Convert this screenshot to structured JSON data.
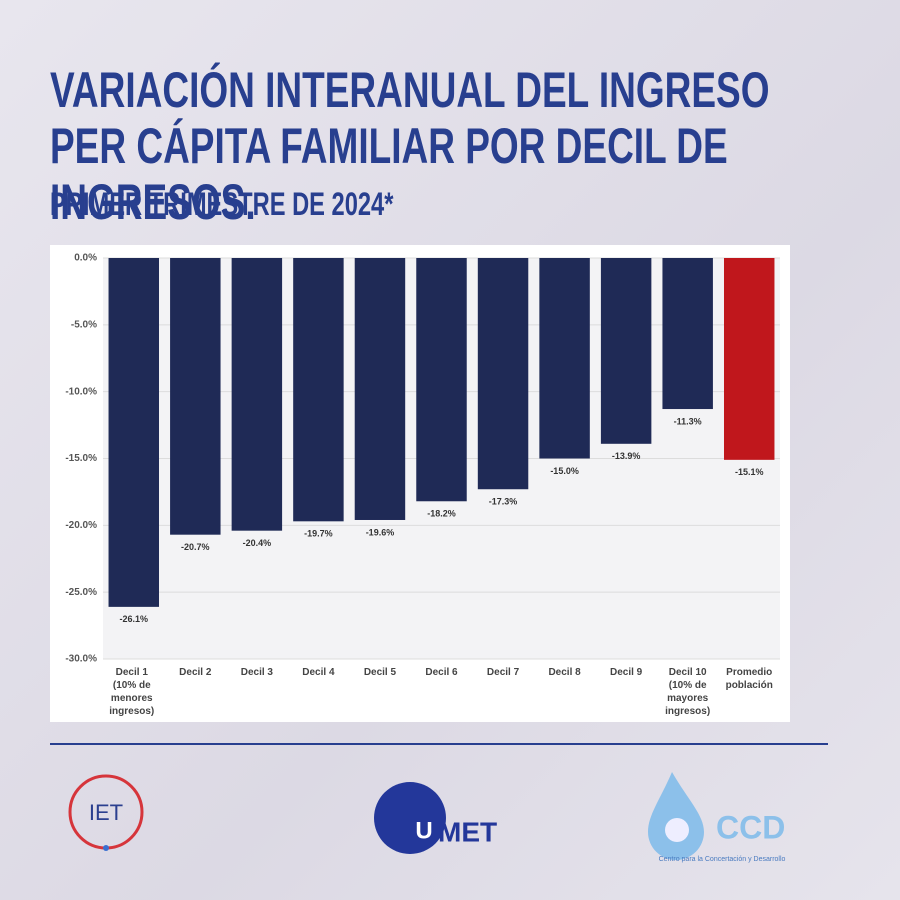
{
  "chart_data": {
    "type": "bar",
    "title": "VARIACIÓN INTERANUAL DEL INGRESO PER CÁPITA FAMILIAR POR DECIL DE INGRESOS.",
    "subtitle": "PRIMER TRIMESTRE DE 2024*",
    "categories": [
      "Decil 1 (10% de menores ingresos)",
      "Decil 2",
      "Decil 3",
      "Decil 4",
      "Decil 5",
      "Decil 6",
      "Decil 7",
      "Decil 8",
      "Decil 9",
      "Decil 10 (10% de mayores ingresos)",
      "Promedio población"
    ],
    "values": [
      -26.1,
      -20.7,
      -20.4,
      -19.7,
      -19.6,
      -18.2,
      -17.3,
      -15,
      -13.9,
      -11.3,
      -15.1
    ],
    "value_labels": [
      "-26.1%",
      "-20.7%",
      "-20.4%",
      "-19.7%",
      "-19.6%",
      "-18.2%",
      "-17.3%",
      "-15.0%",
      "-13.9%",
      "-11.3%",
      "-15.1%"
    ],
    "colors": [
      "#1f2a56",
      "#1f2a56",
      "#1f2a56",
      "#1f2a56",
      "#1f2a56",
      "#1f2a56",
      "#1f2a56",
      "#1f2a56",
      "#1f2a56",
      "#1f2a56",
      "#c0171c"
    ],
    "ylim": [
      -30,
      0
    ],
    "yticks": [
      {
        "value": 0,
        "label": "0.0%"
      },
      {
        "value": -5,
        "label": "-5.0%"
      },
      {
        "value": -10,
        "label": "-10.0%"
      },
      {
        "value": -15,
        "label": "-15.0%"
      },
      {
        "value": -20,
        "label": "-20.0%"
      },
      {
        "value": -25,
        "label": "-25.0%"
      },
      {
        "value": -30,
        "label": "-30.0%"
      }
    ],
    "grid": true
  },
  "logos": {
    "iet": "IET",
    "umet_u": "U",
    "umet_rest": "MET",
    "ccd": "CCD",
    "ccd_caption": "Centro para la Concertación y Desarrollo"
  }
}
